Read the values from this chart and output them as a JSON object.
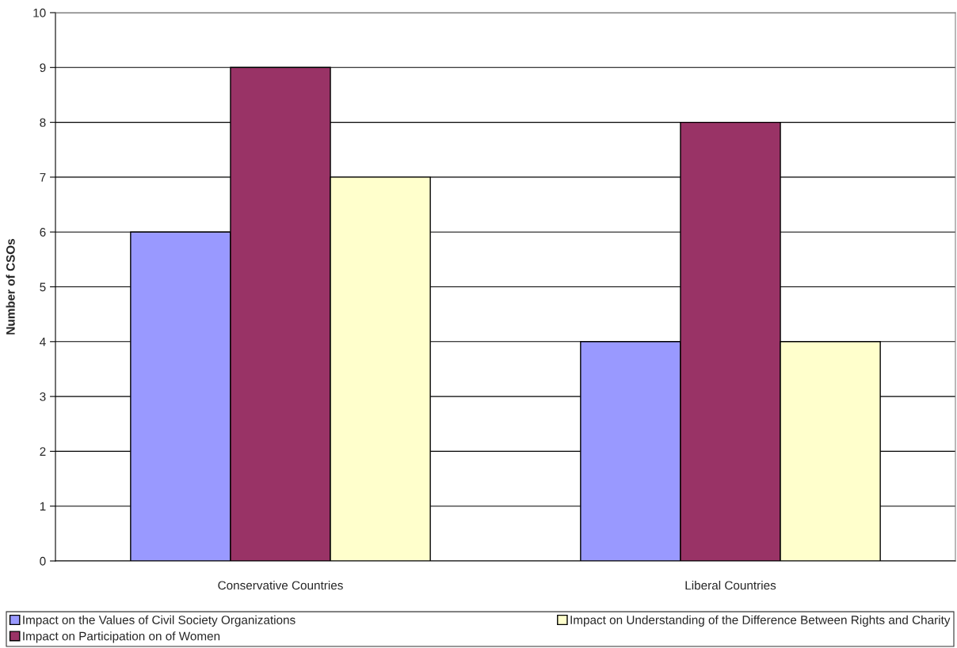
{
  "chart_data": {
    "type": "bar",
    "ylabel": "Number of CSOs",
    "categories": [
      "Conservative Countries",
      "Liberal Countries"
    ],
    "series": [
      {
        "name": "Impact on the Values of Civil Society Organizations",
        "color": "#9999ff",
        "values": [
          6,
          4
        ]
      },
      {
        "name": "Impact on Participation on of Women",
        "color": "#993366",
        "values": [
          9,
          8
        ]
      },
      {
        "name": "Impact on Understanding of the Difference Between Rights and Charity",
        "color": "#ffffcc",
        "values": [
          7,
          4
        ]
      }
    ],
    "ylim": [
      0,
      10
    ],
    "yticks": [
      0,
      1,
      2,
      3,
      4,
      5,
      6,
      7,
      8,
      9,
      10
    ],
    "grid": "y",
    "legend": "bottom"
  }
}
